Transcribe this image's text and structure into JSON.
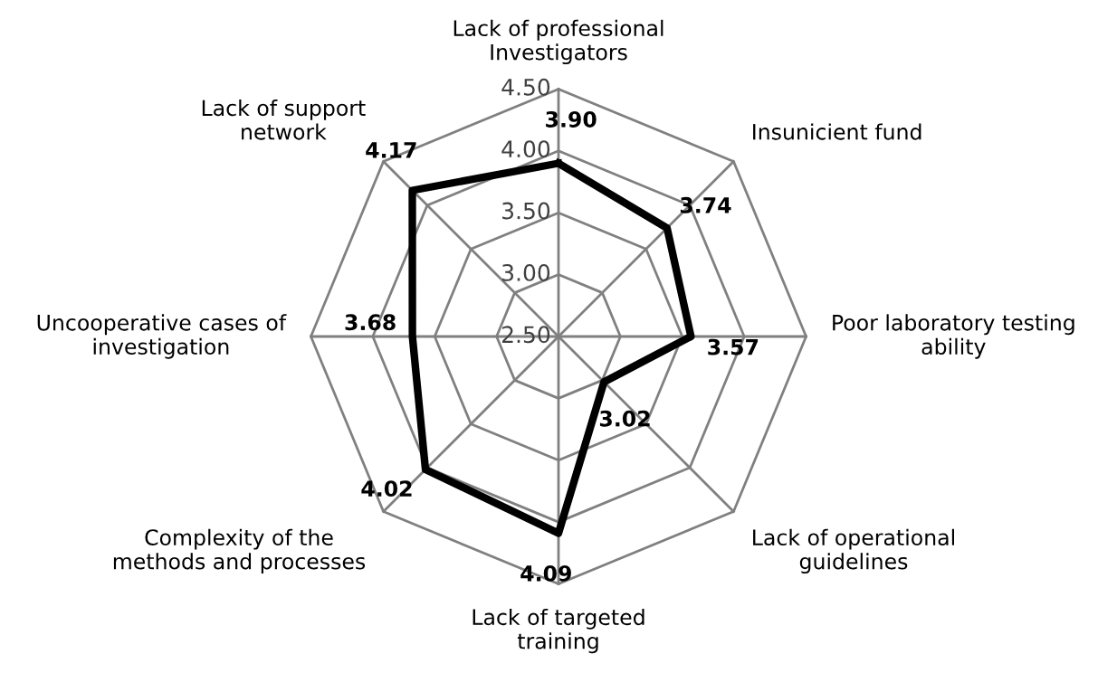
{
  "chart_data": {
    "type": "radar",
    "categories": [
      "Lack of professional\nInvestigators",
      "Insunicient fund",
      "Poor laboratory testing\nability",
      "Lack of operational\nguidelines",
      "Lack of targeted\ntraining",
      "Complexity of the\nmethods and processes",
      "Uncooperative cases of\ninvestigation",
      "Lack of support\nnetwork"
    ],
    "series": [
      {
        "color": "#000000",
        "values": [
          3.9,
          3.74,
          3.57,
          3.02,
          4.09,
          4.02,
          3.68,
          4.17
        ],
        "value_labels": [
          "3.90",
          "3.74",
          "3.57",
          "3.02",
          "4.09",
          "4.02",
          "3.68",
          "4.17"
        ]
      }
    ],
    "ylim": [
      2.5,
      4.5
    ],
    "yticks": [
      {
        "value": 2.5,
        "label": "2.50"
      },
      {
        "value": 3.0,
        "label": "3.00"
      },
      {
        "value": 3.5,
        "label": "3.50"
      },
      {
        "value": 4.0,
        "label": "4.00"
      },
      {
        "value": 4.5,
        "label": "4.50"
      }
    ],
    "grid": true,
    "marker": "none",
    "line_style": "solid"
  }
}
